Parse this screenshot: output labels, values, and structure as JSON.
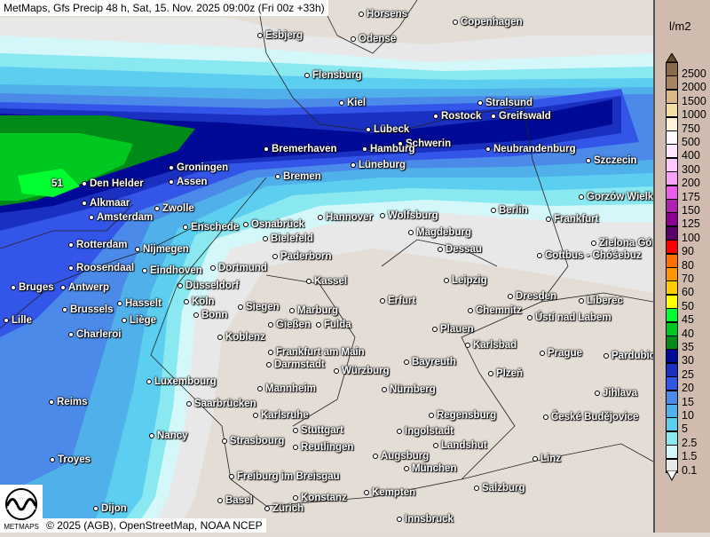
{
  "title": "MetMaps, Gfs Precip 48 h, Sat, 15. Nov. 2025 09:00z (Fri 00z +33h)",
  "credit": "© 2025 (AGB), OpenStreetMap, NOAA NCEP",
  "logo_text": "METMAPS",
  "max_value_label": "51",
  "legend": {
    "unit": "l/m2",
    "entries": [
      {
        "label": "2500",
        "color": "#8b6a4a"
      },
      {
        "label": "2000",
        "color": "#a8835f"
      },
      {
        "label": "1500",
        "color": "#dcb788"
      },
      {
        "label": "1000",
        "color": "#f2dfa2"
      },
      {
        "label": "750",
        "color": "#fdf3d6"
      },
      {
        "label": "500",
        "color": "#fcfaff"
      },
      {
        "label": "400",
        "color": "#ffe6ff"
      },
      {
        "label": "300",
        "color": "#ffc8ff"
      },
      {
        "label": "200",
        "color": "#f9a2f9"
      },
      {
        "label": "175",
        "color": "#ea5cea"
      },
      {
        "label": "150",
        "color": "#b020b0"
      },
      {
        "label": "125",
        "color": "#8a0090"
      },
      {
        "label": "100",
        "color": "#5a006a"
      },
      {
        "label": "90",
        "color": "#ff0000"
      },
      {
        "label": "80",
        "color": "#ff7000"
      },
      {
        "label": "70",
        "color": "#ff9500"
      },
      {
        "label": "60",
        "color": "#ffcc00"
      },
      {
        "label": "50",
        "color": "#ffff00"
      },
      {
        "label": "45",
        "color": "#00ff30"
      },
      {
        "label": "40",
        "color": "#00c820"
      },
      {
        "label": "35",
        "color": "#008a18"
      },
      {
        "label": "30",
        "color": "#000a96"
      },
      {
        "label": "25",
        "color": "#1a30c0"
      },
      {
        "label": "20",
        "color": "#3355e8"
      },
      {
        "label": "15",
        "color": "#4b8ae8"
      },
      {
        "label": "10",
        "color": "#50b0ea"
      },
      {
        "label": "5",
        "color": "#5ccff0"
      },
      {
        "label": "2.5",
        "color": "#8ae8f0"
      },
      {
        "label": "1.5",
        "color": "#d4f8fa"
      },
      {
        "label": "0.1",
        "color": "#e8e8e8"
      }
    ]
  },
  "cities": [
    "Horsens",
    "Copenhagen",
    "Esbjerg",
    "Odense",
    "Flensburg",
    "Kiel",
    "Stralsund",
    "Rostock",
    "Greifswald",
    "Lübeck",
    "Schwerin",
    "Neubrandenburg",
    "Bremerhaven",
    "Hamburg",
    "Szczecin",
    "Groningen",
    "Lüneburg",
    "Bremen",
    "Assen",
    "Den Helder",
    "Gorzów Wielkopolski",
    "Alkmaar",
    "Zwolle",
    "Berlin",
    "Amsterdam",
    "Hannover",
    "Wolfsburg",
    "Frankfurt",
    "Enschede",
    "Osnabrück",
    "Magdeburg",
    "Rotterdam",
    "Bielefeld",
    "Zielona Góra",
    "Nijmegen",
    "Dessau",
    "Cottbus - Chóśebuz",
    "Paderborn",
    "Roosendaal",
    "Eindhoven",
    "Dortmund",
    "Antwerp",
    "Bruges",
    "Kassel",
    "Düsseldorf",
    "Leipzig",
    "Dresden",
    "Köln",
    "Hasselt",
    "Brussels",
    "Siegen",
    "Marburg",
    "Erfurt",
    "Chemnitz",
    "Bonn",
    "Liberec",
    "Ústí nad Labem",
    "Lille",
    "Liège",
    "Gießen",
    "Fulda",
    "Plauen",
    "Koblenz",
    "Charleroi",
    "Karlsbad",
    "Frankfurt am Main",
    "Prague",
    "Pardubice",
    "Darmstadt",
    "Würzburg",
    "Bayreuth",
    "Plzeň",
    "Luxembourg",
    "Mannheim",
    "Nürnberg",
    "Jihlava",
    "Reims",
    "Saarbrücken",
    "Regensburg",
    "Karlsruhe",
    "České Budějovice",
    "Stuttgart",
    "Ingolstadt",
    "Nancy",
    "Strasbourg",
    "Landshut",
    "Reutlingen",
    "Troyes",
    "Augsburg",
    "Linz",
    "München",
    "Freiburg im Breisgau",
    "Kempten",
    "Konstanz",
    "Salzburg",
    "Basel",
    "Zürich",
    "Dijon",
    "Innsbruck"
  ]
}
